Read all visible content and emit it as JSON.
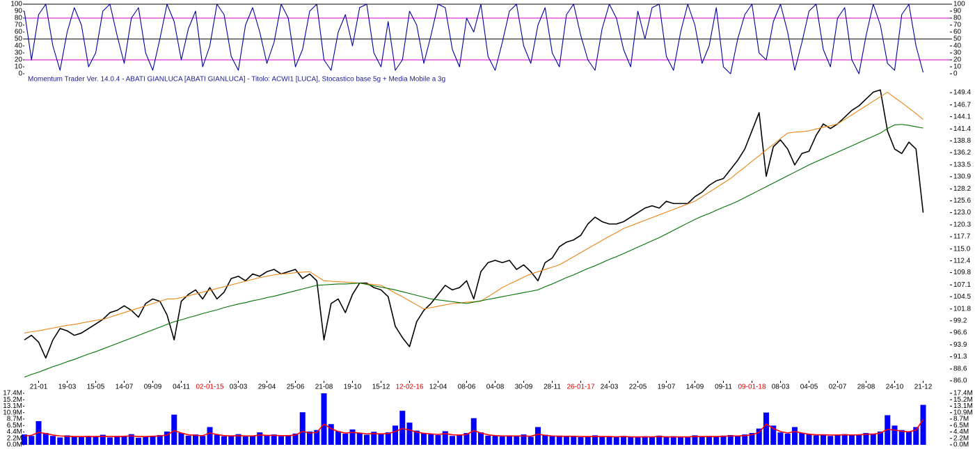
{
  "chart_data": [
    {
      "type": "line",
      "series": [
        {
          "color": "#0000a0",
          "values": [
            90,
            20,
            85,
            100,
            40,
            5,
            60,
            95,
            70,
            10,
            30,
            90,
            100,
            55,
            15,
            80,
            95,
            30,
            5,
            50,
            100,
            75,
            20,
            65,
            90,
            10,
            40,
            100,
            85,
            25,
            5,
            70,
            95,
            60,
            15,
            45,
            100,
            80,
            10,
            35,
            90,
            100,
            20,
            5,
            60,
            85,
            40,
            95,
            100,
            30,
            10,
            75,
            5,
            20,
            90,
            70,
            15,
            55,
            100,
            95,
            35,
            10,
            80,
            60,
            100,
            25,
            5,
            45,
            90,
            100,
            40,
            15,
            70,
            95,
            30,
            10,
            85,
            100,
            55,
            20,
            5,
            65,
            100,
            80,
            35,
            10,
            90,
            50,
            95,
            100,
            25,
            5,
            60,
            100,
            70,
            15,
            40,
            95,
            10,
            0,
            50,
            85,
            100,
            30,
            20,
            75,
            100,
            60,
            5,
            45,
            90,
            100,
            35,
            10,
            80,
            95,
            20,
            0,
            55,
            100,
            70,
            15,
            5,
            85,
            100,
            40,
            2
          ]
        }
      ],
      "ylim": [
        0,
        100
      ],
      "yticks": [
        0,
        10,
        20,
        30,
        40,
        50,
        60,
        70,
        80,
        90,
        100
      ],
      "reference_lines": [
        {
          "value": 100,
          "color": "#000000"
        },
        {
          "value": 80,
          "color": "#d000d0"
        },
        {
          "value": 50,
          "color": "#000000"
        },
        {
          "value": 20,
          "color": "#d000d0"
        }
      ]
    },
    {
      "type": "line",
      "title": "Momentum Trader   Ver. 14.0.4  -  ABATI GIANLUCA  [ABATI GIANLUCA] - Titolo: ACWI1  [LUCA],    Stocastico base 5g + Media Mobile a 3g",
      "categories": [
        null,
        null,
        "21-01",
        null,
        null,
        null,
        "19-03",
        null,
        null,
        null,
        "15-05",
        null,
        null,
        null,
        "14-07",
        null,
        null,
        null,
        "09-09",
        null,
        null,
        null,
        "04-11",
        null,
        null,
        null,
        "02-01-15",
        null,
        null,
        null,
        "03-03",
        null,
        null,
        null,
        "29-04",
        null,
        null,
        null,
        "25-06",
        null,
        null,
        null,
        "21-08",
        null,
        null,
        null,
        "19-10",
        null,
        null,
        null,
        "15-12",
        null,
        null,
        null,
        "12-02-16",
        null,
        null,
        null,
        "12-04",
        null,
        null,
        null,
        "08-06",
        null,
        null,
        null,
        "04-08",
        null,
        null,
        null,
        "30-09",
        null,
        null,
        null,
        "28-11",
        null,
        null,
        null,
        "26-01-17",
        null,
        null,
        null,
        "24-03",
        null,
        null,
        null,
        "22-05",
        null,
        null,
        null,
        "19-07",
        null,
        null,
        null,
        "14-09",
        null,
        null,
        null,
        "09-11",
        null,
        null,
        null,
        "09-01-18",
        null,
        null,
        null,
        "08-03",
        null,
        null,
        null,
        "04-05",
        null,
        null,
        null,
        "02-07",
        null,
        null,
        null,
        "28-08",
        null,
        null,
        null,
        "24-10",
        null,
        null,
        null,
        "21-12"
      ],
      "series": [
        {
          "color": "#000000",
          "values": [
            95,
            96,
            94.5,
            91,
            95,
            97.5,
            97,
            96,
            96.5,
            97.5,
            98.5,
            99.5,
            101,
            101.5,
            102.5,
            101.5,
            100,
            103,
            104,
            103.5,
            100.5,
            95,
            103.5,
            105,
            106,
            104,
            106.5,
            104,
            105.5,
            108.5,
            109,
            108,
            109.5,
            109,
            110,
            110.5,
            109.5,
            110,
            110.5,
            108.5,
            109.5,
            108,
            95,
            103,
            104,
            101,
            105,
            107.5,
            107.5,
            106.5,
            106,
            104.5,
            98,
            95.5,
            93.5,
            99,
            101.5,
            103,
            105,
            107,
            106,
            106.5,
            108,
            104,
            110,
            112,
            112.5,
            112,
            112.5,
            110.5,
            111.5,
            110,
            108,
            112,
            113,
            115.5,
            116.5,
            117,
            118,
            120.5,
            122,
            121,
            120.5,
            120.5,
            121,
            122,
            123,
            124,
            124.5,
            124,
            125.5,
            125,
            125,
            125,
            126.5,
            127.5,
            129,
            130,
            130.5,
            132.5,
            134.5,
            137,
            141,
            145,
            131,
            137.5,
            139,
            137,
            133.5,
            136,
            136.5,
            140,
            142.5,
            141.5,
            142.5,
            144,
            145.5,
            146.5,
            148,
            149.5,
            150,
            141,
            137,
            136,
            138.5,
            137,
            123
          ]
        },
        {
          "color": "#e8861a",
          "values": [
            96.5,
            96.8,
            97.0,
            97.3,
            97.6,
            97.9,
            98.2,
            98.4,
            98.7,
            99.0,
            99.3,
            99.5,
            100.0,
            100.5,
            101.0,
            101.5,
            102.0,
            102.5,
            103.0,
            103.5,
            104.0,
            104.0,
            104.3,
            104.7,
            105.1,
            105.5,
            105.9,
            106.3,
            106.7,
            107.1,
            107.5,
            107.9,
            108.3,
            108.7,
            109.0,
            109.3,
            109.5,
            109.6,
            109.8,
            109.9,
            110.0,
            109.0,
            108.0,
            107.9,
            107.8,
            107.7,
            107.6,
            107.5,
            107.3,
            107.2,
            107.0,
            106.2,
            105.3,
            104.5,
            103.6,
            102.7,
            101.8,
            102.1,
            102.4,
            102.7,
            103.0,
            103.1,
            103.3,
            103.4,
            103.5,
            104.5,
            105.5,
            106.5,
            107.3,
            108.0,
            108.8,
            109.5,
            110.0,
            110.5,
            111.0,
            111.5,
            112.4,
            113.3,
            114.2,
            115.1,
            116.0,
            116.9,
            117.8,
            118.6,
            119.5,
            120.1,
            120.7,
            121.3,
            121.9,
            122.5,
            123.1,
            123.7,
            124.3,
            124.9,
            125.5,
            126.5,
            127.5,
            128.5,
            129.5,
            130.5,
            131.8,
            133.0,
            134.3,
            135.5,
            136.8,
            138.0,
            139.3,
            140.5,
            140.7,
            140.8,
            141.0,
            141.4,
            141.8,
            142.1,
            142.5,
            143.5,
            144.5,
            145.5,
            146.5,
            147.5,
            148.5,
            149.5,
            148.3,
            147.2,
            146.0,
            144.8,
            143.5
          ]
        },
        {
          "color": "#007000",
          "values": [
            86.8,
            87.4,
            87.9,
            88.5,
            89.1,
            89.6,
            90.2,
            90.7,
            91.3,
            91.9,
            92.4,
            93.0,
            93.6,
            94.2,
            94.8,
            95.4,
            96.0,
            96.6,
            97.2,
            97.8,
            98.4,
            99.0,
            99.4,
            99.9,
            100.3,
            100.8,
            101.2,
            101.6,
            102.1,
            102.5,
            102.9,
            103.2,
            103.6,
            103.9,
            104.3,
            104.6,
            105.0,
            105.4,
            105.8,
            106.2,
            106.6,
            107.0,
            107.1,
            107.2,
            107.3,
            107.3,
            107.4,
            107.5,
            107.2,
            106.9,
            106.6,
            106.3,
            106.0,
            105.6,
            105.2,
            104.8,
            104.4,
            104.0,
            103.8,
            103.6,
            103.4,
            103.2,
            103.0,
            103.3,
            103.6,
            103.9,
            104.2,
            104.5,
            104.8,
            105.1,
            105.4,
            105.7,
            106.0,
            106.7,
            107.3,
            108.0,
            108.7,
            109.3,
            110.0,
            110.7,
            111.3,
            112.0,
            112.7,
            113.3,
            114.0,
            114.7,
            115.4,
            116.1,
            116.8,
            117.5,
            118.3,
            119.1,
            119.9,
            120.7,
            121.5,
            122.2,
            122.8,
            123.5,
            124.2,
            124.8,
            125.5,
            126.3,
            127.1,
            127.9,
            128.7,
            129.5,
            130.3,
            131.1,
            131.9,
            132.7,
            133.5,
            134.2,
            134.9,
            135.6,
            136.3,
            137.0,
            137.7,
            138.4,
            139.1,
            139.8,
            140.5,
            141.5,
            142.3,
            142.4,
            142.2,
            141.9,
            141.6
          ]
        }
      ],
      "ylim": [
        86,
        151.4
      ],
      "yticks": [
        {
          "value": 86,
          "label": "86.0"
        },
        88.6,
        91.3,
        93.9,
        96.6,
        99.2,
        101.8,
        104.5,
        107.1,
        109.8,
        112.4,
        {
          "value": 115,
          "label": "115.0"
        },
        117.7,
        120.3,
        {
          "value": 123,
          "label": "123.0"
        },
        125.6,
        128.2,
        130.9,
        133.5,
        136.2,
        138.8,
        141.4,
        144.1,
        146.7,
        149.4
      ],
      "year_label_color": "#e00000"
    },
    {
      "type": "bar",
      "series": [
        {
          "type": "bar",
          "color": "#0000ff",
          "values": [
            3500000,
            3000000,
            8000000,
            4000000,
            3000000,
            2500000,
            3200000,
            2800000,
            2600000,
            3000000,
            2700000,
            3400000,
            2500000,
            3000000,
            2900000,
            3600000,
            2400000,
            2800000,
            3000000,
            3300000,
            4500000,
            10200000,
            4000000,
            3100000,
            3500000,
            3000000,
            6000000,
            3400000,
            2900000,
            3200000,
            3600000,
            2800000,
            3000000,
            4200000,
            3100000,
            3500000,
            2900000,
            3300000,
            3800000,
            11000000,
            4500000,
            5000000,
            17400000,
            7000000,
            4600000,
            3800000,
            5200000,
            4000000,
            3400000,
            4400000,
            3600000,
            4200000,
            6500000,
            11500000,
            7500000,
            4800000,
            3900000,
            3600000,
            3300000,
            4600000,
            3000000,
            3400000,
            4000000,
            9000000,
            4200000,
            3100000,
            3000000,
            2800000,
            3200000,
            2900000,
            3500000,
            2700000,
            6000000,
            3400000,
            2900000,
            3100000,
            2800000,
            3000000,
            2600000,
            2900000,
            3200000,
            2700000,
            2900000,
            2600000,
            3000000,
            2800000,
            2500000,
            2900000,
            2700000,
            3100000,
            2600000,
            2900000,
            2800000,
            2600000,
            3200000,
            2700000,
            3000000,
            2800000,
            3100000,
            3300000,
            2900000,
            3500000,
            4000000,
            5500000,
            10900000,
            6500000,
            4200000,
            3800000,
            6000000,
            4000000,
            3600000,
            3200000,
            3500000,
            3000000,
            3400000,
            3600000,
            3200000,
            3500000,
            4000000,
            3800000,
            4500000,
            10000000,
            6500000,
            5000000,
            4500000,
            6000000,
            13500000
          ]
        },
        {
          "type": "line",
          "color": "#ff0000",
          "values": [
            3000000,
            3200000,
            4200000,
            3800000,
            3300000,
            3000000,
            2900000,
            2800000,
            2800000,
            2800000,
            2800000,
            2900000,
            2800000,
            2800000,
            2900000,
            3000000,
            2800000,
            2800000,
            2900000,
            3000000,
            3300000,
            4800000,
            4000000,
            3400000,
            3200000,
            3100000,
            4000000,
            3500000,
            3100000,
            3000000,
            3100000,
            3000000,
            3000000,
            3300000,
            3200000,
            3200000,
            3100000,
            3100000,
            3300000,
            4500000,
            4000000,
            4200000,
            7000000,
            5500000,
            4500000,
            4000000,
            4200000,
            4000000,
            3700000,
            3800000,
            3700000,
            3800000,
            4500000,
            5500000,
            5000000,
            4300000,
            3900000,
            3700000,
            3500000,
            3800000,
            3400000,
            3300000,
            3500000,
            4800000,
            4000000,
            3400000,
            3100000,
            3000000,
            3000000,
            3000000,
            3000000,
            2900000,
            3600000,
            3200000,
            3000000,
            2900000,
            2900000,
            2900000,
            2800000,
            2800000,
            2800000,
            2800000,
            2800000,
            2700000,
            2800000,
            2700000,
            2700000,
            2700000,
            2700000,
            2800000,
            2700000,
            2700000,
            2700000,
            2700000,
            2800000,
            2800000,
            2800000,
            2800000,
            2900000,
            3000000,
            3000000,
            3100000,
            3400000,
            4200000,
            7000000,
            5500000,
            4500000,
            4000000,
            4500000,
            4000000,
            3600000,
            3400000,
            3400000,
            3300000,
            3300000,
            3400000,
            3300000,
            3400000,
            3600000,
            3600000,
            4000000,
            5200000,
            5000000,
            4600000,
            4400000,
            5000000,
            8500000
          ]
        }
      ],
      "ylim": [
        0,
        17400000
      ],
      "yticks": [
        {
          "value": 0,
          "label": "0.0M"
        },
        {
          "value": 2175000,
          "label": "2.2M"
        },
        {
          "value": 4350000,
          "label": "4.4M"
        },
        {
          "value": 6525000,
          "label": "6.5M"
        },
        {
          "value": 8700000,
          "label": "8.7M"
        },
        {
          "value": 10875000,
          "label": "10.9M"
        },
        {
          "value": 13050000,
          "label": "13.1M"
        },
        {
          "value": 15225000,
          "label": "15.2M"
        },
        {
          "value": 17400000,
          "label": "17.4M"
        }
      ]
    }
  ]
}
